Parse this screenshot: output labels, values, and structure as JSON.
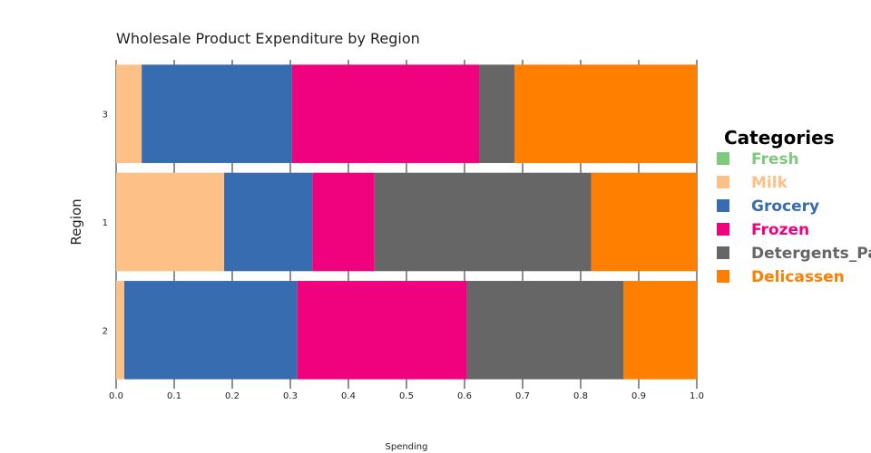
{
  "chart_data": {
    "type": "bar",
    "orientation": "horizontal",
    "stacked": true,
    "title": "Wholesale Product Expenditure by Region",
    "xlabel": "Spending",
    "ylabel": "Region",
    "xlim": [
      0,
      1
    ],
    "x_ticks": [
      "0.0",
      "0.1",
      "0.2",
      "0.3",
      "0.4",
      "0.5",
      "0.6",
      "0.7",
      "0.8",
      "0.9",
      "1.0"
    ],
    "categories": [
      "2",
      "1",
      "3"
    ],
    "legend_title": "Categories",
    "legend_position": "right",
    "series": [
      {
        "name": "Fresh",
        "color": "#7fc97f",
        "values": [
          0.0,
          0.0,
          0.0
        ]
      },
      {
        "name": "Milk",
        "color": "#fdc086",
        "values": [
          0.014,
          0.186,
          0.044
        ]
      },
      {
        "name": "Grocery",
        "color": "#386cb0",
        "values": [
          0.298,
          0.152,
          0.259
        ]
      },
      {
        "name": "Frozen",
        "color": "#f0027f",
        "values": [
          0.292,
          0.107,
          0.322
        ]
      },
      {
        "name": "Detergents_Paper",
        "color": "#666666",
        "values": [
          0.27,
          0.373,
          0.061
        ]
      },
      {
        "name": "Delicassen",
        "color": "#ff7f00",
        "values": [
          0.126,
          0.182,
          0.314
        ]
      }
    ]
  }
}
